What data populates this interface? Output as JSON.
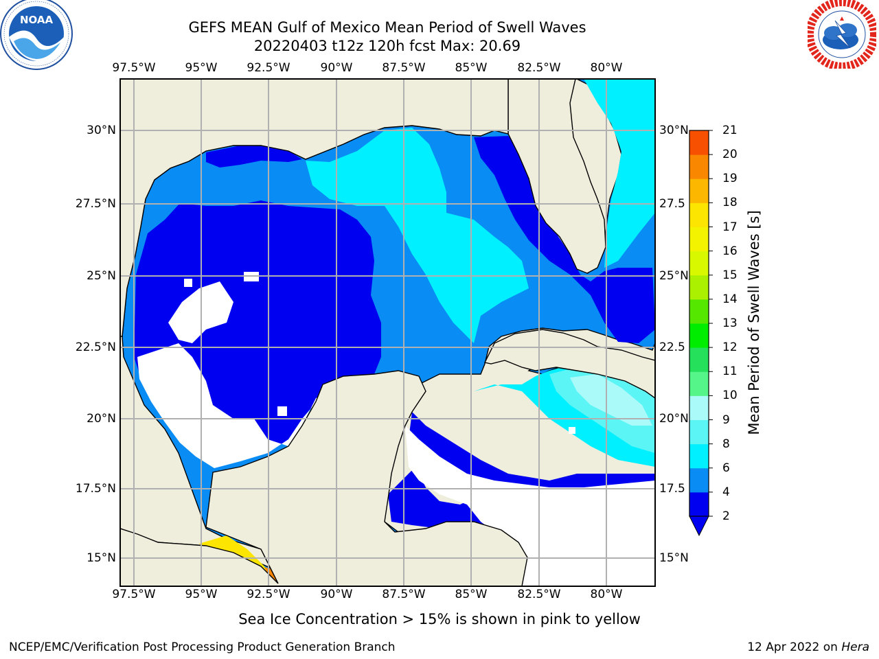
{
  "header": {
    "title_line1": "GEFS MEAN Gulf of Mexico Mean Period of Swell Waves",
    "title_line2": "20220403 t12z 120h fcst   Max: 20.69"
  },
  "logos": {
    "left": {
      "name": "NOAA",
      "ring_text": "NATIONAL OCEANIC AND ATMOSPHERIC ADMINISTRATION · U.S. DEPARTMENT OF COMMERCE"
    },
    "right": {
      "name": "NATIONAL WEATHER SERVICE"
    }
  },
  "map": {
    "lon_ticks": [
      "97.5°W",
      "95°W",
      "92.5°W",
      "90°W",
      "87.5°W",
      "85°W",
      "82.5°W",
      "80°W"
    ],
    "lat_ticks_left": [
      "30°N",
      "27.5°N",
      "25°N",
      "22.5°N",
      "20°N",
      "17.5°N",
      "15°N"
    ],
    "lat_ticks_right": [
      "30°N",
      "27.5",
      "25°N",
      "22.5",
      "20°N",
      "17.5",
      "15°N"
    ],
    "extent": {
      "lon_min": -98,
      "lon_max": -79,
      "lat_min": 14,
      "lat_max": 31.8
    },
    "colors": {
      "land": "#efeddc",
      "coast": "#000000",
      "grid": "#b0b0b0",
      "no_swell": "#ffffff"
    }
  },
  "colorbar": {
    "label": "Mean Period of Swell Waves [s]",
    "ticks": [
      "2",
      "4",
      "6",
      "8",
      "9",
      "10",
      "11",
      "12",
      "13",
      "14",
      "15",
      "16",
      "17",
      "18",
      "19",
      "20",
      "21"
    ],
    "levels": [
      2,
      4,
      6,
      8,
      9,
      10,
      11,
      12,
      13,
      14,
      15,
      16,
      17,
      18,
      19,
      20,
      21
    ],
    "colors": [
      "#0000f0",
      "#0a8cf5",
      "#00f0ff",
      "#5cf5f5",
      "#aafafa",
      "#55f58a",
      "#25e05a",
      "#00ed00",
      "#56e700",
      "#aaf000",
      "#d8f800",
      "#f3f300",
      "#fce500",
      "#fcb700",
      "#fa8700",
      "#f65000",
      "#fa1c00"
    ],
    "extend": "min"
  },
  "note": "Sea Ice Concentration > 15% is shown in pink to yellow",
  "footer": {
    "left": "NCEP/EMC/Verification Post Processing Product Generation Branch",
    "right_prefix": "12 Apr 2022 on ",
    "right_host": "Hera"
  }
}
